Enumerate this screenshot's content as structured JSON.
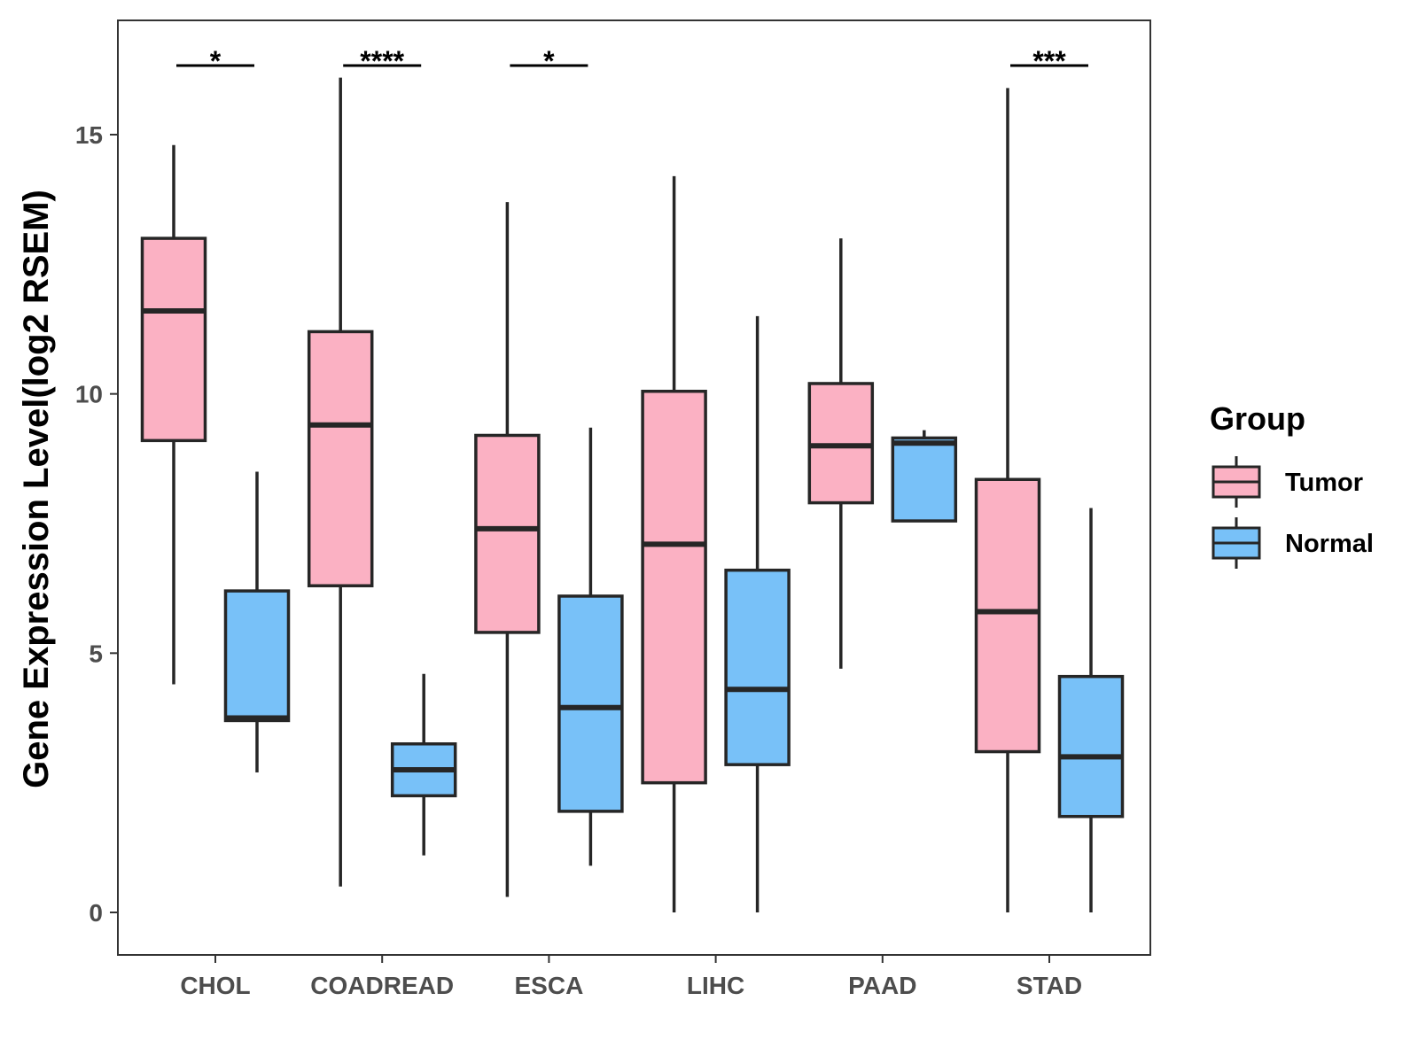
{
  "chart_data": {
    "type": "boxplot",
    "title": "",
    "xlabel": "",
    "ylabel": "Gene Expression Level(log2 RSEM)",
    "ylim": [
      -0.8,
      17
    ],
    "yticks": [
      0,
      5,
      10,
      15
    ],
    "categories": [
      "CHOL",
      "COADREAD",
      "ESCA",
      "LIHC",
      "PAAD",
      "STAD"
    ],
    "series": [
      {
        "name": "Tumor",
        "color": "#fbb1c3",
        "boxes": [
          {
            "whisker_low": 4.4,
            "q1": 9.1,
            "median": 11.6,
            "q3": 13.0,
            "whisker_high": 14.8
          },
          {
            "whisker_low": 0.5,
            "q1": 6.3,
            "median": 9.4,
            "q3": 11.2,
            "whisker_high": 16.1
          },
          {
            "whisker_low": 0.3,
            "q1": 5.4,
            "median": 7.4,
            "q3": 9.2,
            "whisker_high": 13.7
          },
          {
            "whisker_low": 0.0,
            "q1": 2.5,
            "median": 7.1,
            "q3": 10.05,
            "whisker_high": 14.2
          },
          {
            "whisker_low": 4.7,
            "q1": 7.9,
            "median": 9.0,
            "q3": 10.2,
            "whisker_high": 13.0
          },
          {
            "whisker_low": 0.0,
            "q1": 3.1,
            "median": 5.8,
            "q3": 8.35,
            "whisker_high": 15.9
          }
        ]
      },
      {
        "name": "Normal",
        "color": "#78c1f8",
        "boxes": [
          {
            "whisker_low": 2.7,
            "q1": 3.7,
            "median": 3.75,
            "q3": 6.2,
            "whisker_high": 8.5
          },
          {
            "whisker_low": 1.1,
            "q1": 2.25,
            "median": 2.75,
            "q3": 3.25,
            "whisker_high": 4.6
          },
          {
            "whisker_low": 0.9,
            "q1": 1.95,
            "median": 3.95,
            "q3": 6.1,
            "whisker_high": 9.35
          },
          {
            "whisker_low": 0.0,
            "q1": 2.85,
            "median": 4.3,
            "q3": 6.6,
            "whisker_high": 11.5
          },
          {
            "whisker_low": 7.55,
            "q1": 7.55,
            "median": 9.05,
            "q3": 9.15,
            "whisker_high": 9.3
          },
          {
            "whisker_low": 0.0,
            "q1": 1.85,
            "median": 3.0,
            "q3": 4.55,
            "whisker_high": 7.8
          }
        ]
      }
    ],
    "significance": [
      {
        "category": "CHOL",
        "label": "*"
      },
      {
        "category": "COADREAD",
        "label": "****"
      },
      {
        "category": "ESCA",
        "label": "*"
      },
      {
        "category": "STAD",
        "label": "***"
      }
    ],
    "legend": {
      "title": "Group",
      "position": "right",
      "entries": [
        "Tumor",
        "Normal"
      ]
    }
  }
}
